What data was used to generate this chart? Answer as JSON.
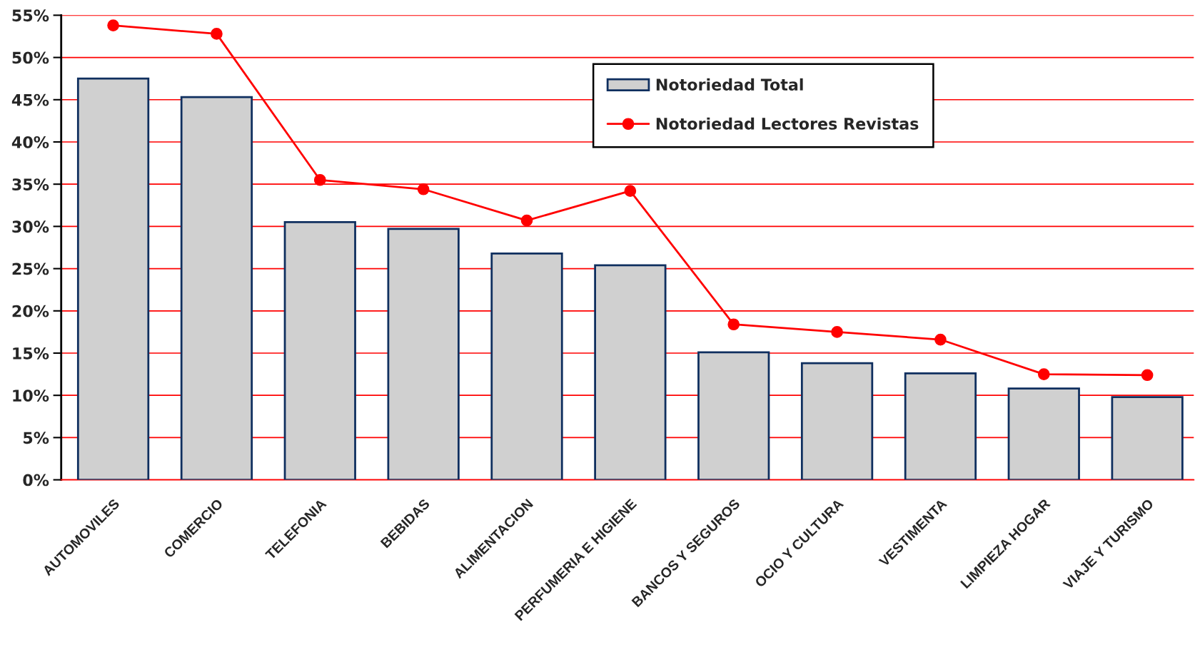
{
  "chart_data": {
    "type": "bar",
    "categories": [
      "AUTOMOVILES",
      "COMERCIO",
      "TELEFONIA",
      "BEBIDAS",
      "ALIMENTACION",
      "PERFUMERIA E HIGIENE",
      "BANCOS Y SEGUROS",
      "OCIO Y CULTURA",
      "VESTIMENTA",
      "LIMPIEZA HOGAR",
      "VIAJE Y TURISMO"
    ],
    "series": [
      {
        "name": "Notoriedad Total",
        "color": "#d0d0d0",
        "values": [
          47.5,
          45.3,
          30.5,
          29.7,
          26.8,
          25.4,
          15.1,
          13.8,
          12.6,
          10.8,
          9.8
        ]
      },
      {
        "name": "Notoriedad Lectores Revistas",
        "type": "line",
        "color": "#ff0000",
        "marker": "circle",
        "line_style": "solid",
        "values": [
          53.8,
          52.8,
          35.5,
          34.4,
          30.7,
          34.2,
          18.4,
          17.5,
          16.6,
          12.5,
          12.4
        ]
      }
    ],
    "ylim": [
      0,
      55
    ],
    "yticks": [
      {
        "value": 0,
        "label": "0%"
      },
      {
        "value": 5,
        "label": "5%"
      },
      {
        "value": 10,
        "label": "10%"
      },
      {
        "value": 15,
        "label": "15%"
      },
      {
        "value": 20,
        "label": "20%"
      },
      {
        "value": 25,
        "label": "25%"
      },
      {
        "value": 30,
        "label": "30%"
      },
      {
        "value": 35,
        "label": "35%"
      },
      {
        "value": 40,
        "label": "40%"
      },
      {
        "value": 45,
        "label": "45%"
      },
      {
        "value": 50,
        "label": "50%"
      },
      {
        "value": 55,
        "label": "55%"
      }
    ],
    "grid": "y",
    "legend": "top right"
  }
}
